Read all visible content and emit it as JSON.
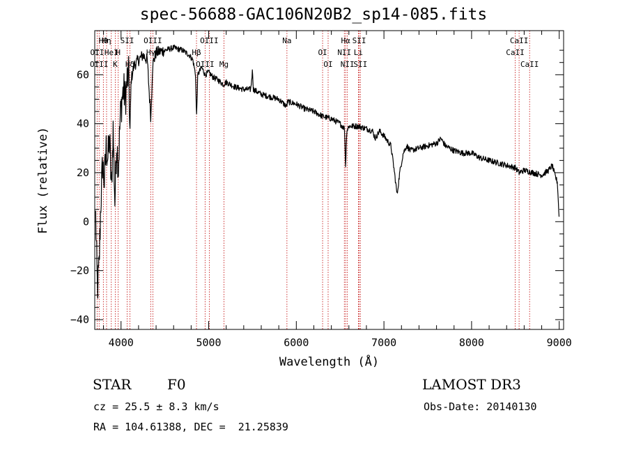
{
  "chart_data": {
    "type": "line",
    "title": "spec-56688-GAC106N20B2_sp14-085.fits",
    "xlabel": "Wavelength (Å)",
    "ylabel": "Flux (relative)",
    "xlim": [
      3700,
      9050
    ],
    "ylim": [
      -44,
      78
    ],
    "xticks": [
      4000,
      5000,
      6000,
      7000,
      8000,
      9000
    ],
    "yticks": [
      -40,
      -20,
      0,
      20,
      40,
      60
    ],
    "spectrum_anchors": [
      [
        3710,
        2
      ],
      [
        3730,
        -28
      ],
      [
        3750,
        -18
      ],
      [
        3770,
        8
      ],
      [
        3790,
        24
      ],
      [
        3810,
        16
      ],
      [
        3830,
        30
      ],
      [
        3850,
        26
      ],
      [
        3870,
        34
      ],
      [
        3890,
        12
      ],
      [
        3910,
        38
      ],
      [
        3930,
        8
      ],
      [
        3950,
        32
      ],
      [
        3970,
        22
      ],
      [
        3990,
        42
      ],
      [
        4010,
        50
      ],
      [
        4030,
        54
      ],
      [
        4050,
        50
      ],
      [
        4070,
        58
      ],
      [
        4090,
        60
      ],
      [
        4100,
        34
      ],
      [
        4115,
        58
      ],
      [
        4150,
        64
      ],
      [
        4200,
        66
      ],
      [
        4250,
        68
      ],
      [
        4300,
        66
      ],
      [
        4340,
        42
      ],
      [
        4360,
        64
      ],
      [
        4400,
        69
      ],
      [
        4500,
        70
      ],
      [
        4600,
        71
      ],
      [
        4700,
        70
      ],
      [
        4780,
        68
      ],
      [
        4820,
        66
      ],
      [
        4850,
        60
      ],
      [
        4861,
        42
      ],
      [
        4875,
        60
      ],
      [
        4920,
        63
      ],
      [
        4960,
        60
      ],
      [
        5000,
        61
      ],
      [
        5050,
        59
      ],
      [
        5100,
        58
      ],
      [
        5170,
        56
      ],
      [
        5200,
        57
      ],
      [
        5300,
        55
      ],
      [
        5400,
        54
      ],
      [
        5480,
        54
      ],
      [
        5500,
        62
      ],
      [
        5510,
        54
      ],
      [
        5600,
        52
      ],
      [
        5700,
        51
      ],
      [
        5800,
        50
      ],
      [
        5890,
        47
      ],
      [
        5900,
        49
      ],
      [
        6000,
        48
      ],
      [
        6100,
        46
      ],
      [
        6200,
        45
      ],
      [
        6300,
        43
      ],
      [
        6400,
        42
      ],
      [
        6500,
        40
      ],
      [
        6550,
        38
      ],
      [
        6563,
        22
      ],
      [
        6575,
        37
      ],
      [
        6600,
        39
      ],
      [
        6700,
        39
      ],
      [
        6800,
        38
      ],
      [
        6870,
        37
      ],
      [
        6900,
        34
      ],
      [
        6950,
        37
      ],
      [
        7000,
        35
      ],
      [
        7080,
        31
      ],
      [
        7120,
        20
      ],
      [
        7150,
        11
      ],
      [
        7180,
        20
      ],
      [
        7220,
        28
      ],
      [
        7260,
        31
      ],
      [
        7300,
        29
      ],
      [
        7400,
        30
      ],
      [
        7500,
        31
      ],
      [
        7600,
        32
      ],
      [
        7650,
        34
      ],
      [
        7700,
        31
      ],
      [
        7800,
        29
      ],
      [
        7900,
        28
      ],
      [
        8000,
        28
      ],
      [
        8100,
        26
      ],
      [
        8200,
        25
      ],
      [
        8300,
        24
      ],
      [
        8400,
        23
      ],
      [
        8500,
        22
      ],
      [
        8542,
        20
      ],
      [
        8600,
        21
      ],
      [
        8700,
        20
      ],
      [
        8800,
        19
      ],
      [
        8880,
        21
      ],
      [
        8920,
        23
      ],
      [
        8950,
        19
      ],
      [
        8980,
        16
      ],
      [
        9000,
        0
      ]
    ],
    "line_markers": [
      {
        "label": "Hθ",
        "x": 3798
      },
      {
        "label": "OII",
        "x": 3727
      },
      {
        "label": "OIII",
        "x": 3750
      },
      {
        "label": "Hη",
        "x": 3835
      },
      {
        "label": "HeI",
        "x": 3889
      },
      {
        "label": "K",
        "x": 3934
      },
      {
        "label": "SII",
        "x": 4070
      },
      {
        "label": "H",
        "x": 3968
      },
      {
        "label": "Hδ",
        "x": 4101
      },
      {
        "label": "OIII",
        "x": 4363
      },
      {
        "label": "Hγ",
        "x": 4340
      },
      {
        "label": "OIII",
        "x": 4959
      },
      {
        "label": "OIII",
        "x": 5007
      },
      {
        "label": "Hβ",
        "x": 4861
      },
      {
        "label": "Mg",
        "x": 5175
      },
      {
        "label": "Na",
        "x": 5893
      },
      {
        "label": "OI",
        "x": 6300
      },
      {
        "label": "OI",
        "x": 6363
      },
      {
        "label": "Hα",
        "x": 6563
      },
      {
        "label": "NII",
        "x": 6548
      },
      {
        "label": "NII",
        "x": 6583
      },
      {
        "label": "SII",
        "x": 6717
      },
      {
        "label": "Li",
        "x": 6708
      },
      {
        "label": "SII",
        "x": 6731
      },
      {
        "label": "CaII",
        "x": 8542
      },
      {
        "label": "CaII",
        "x": 8498
      },
      {
        "label": "CaII",
        "x": 8662
      }
    ]
  },
  "info": {
    "class": "STAR",
    "subclass": "F0",
    "survey": "LAMOST DR3",
    "cz": "cz = 25.5 ± 8.3 km/s",
    "obs_date": "Obs-Date: 20140130",
    "coords": "RA = 104.61388, DEC =  21.25839"
  }
}
